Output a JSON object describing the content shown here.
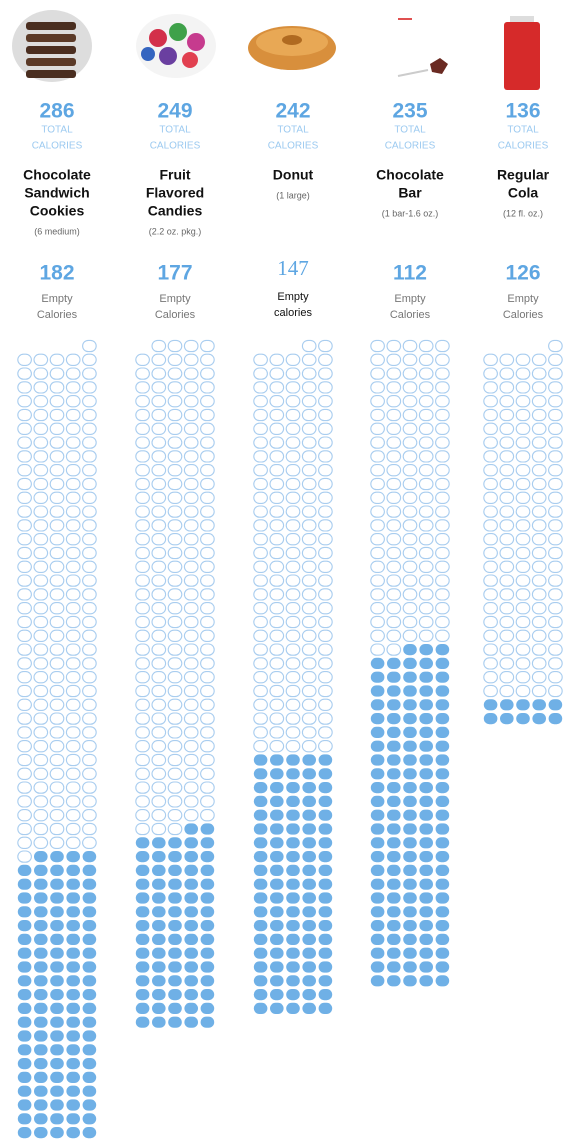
{
  "items": [
    {
      "total": 286,
      "total_label": [
        "TOTAL",
        "CALORIES"
      ],
      "name": [
        "Chocolate",
        "Sandwich",
        "Cookies"
      ],
      "serving": "(6 medium)",
      "empty": 182,
      "empty_label": [
        "Empty",
        "Calories"
      ]
    },
    {
      "total": 249,
      "total_label": [
        "TOTAL",
        "CALORIES"
      ],
      "name": [
        "Fruit",
        "Flavored",
        "Candies"
      ],
      "serving": "(2.2 oz. pkg.)",
      "empty": 177,
      "empty_label": [
        "Empty",
        "Calories"
      ]
    },
    {
      "total": 242,
      "total_label": [
        "TOTAL",
        "CALORIES"
      ],
      "name": [
        "Donut"
      ],
      "serving": "(1 large)",
      "empty": 147,
      "empty_label": [
        "Empty",
        "calories"
      ]
    },
    {
      "total": 235,
      "total_label": [
        "TOTAL",
        "CALORIES"
      ],
      "name": [
        "Chocolate",
        "Bar"
      ],
      "serving": "(1 bar-1.6 oz.)",
      "empty": 112,
      "empty_label": [
        "Empty",
        "Calories"
      ]
    },
    {
      "total": 136,
      "total_label": [
        "TOTAL",
        "CALORIES"
      ],
      "name": [
        "Regular",
        "Cola"
      ],
      "serving": "(12 fl. oz.)",
      "empty": 126,
      "empty_label": [
        "Empty",
        "Calories"
      ]
    }
  ]
}
